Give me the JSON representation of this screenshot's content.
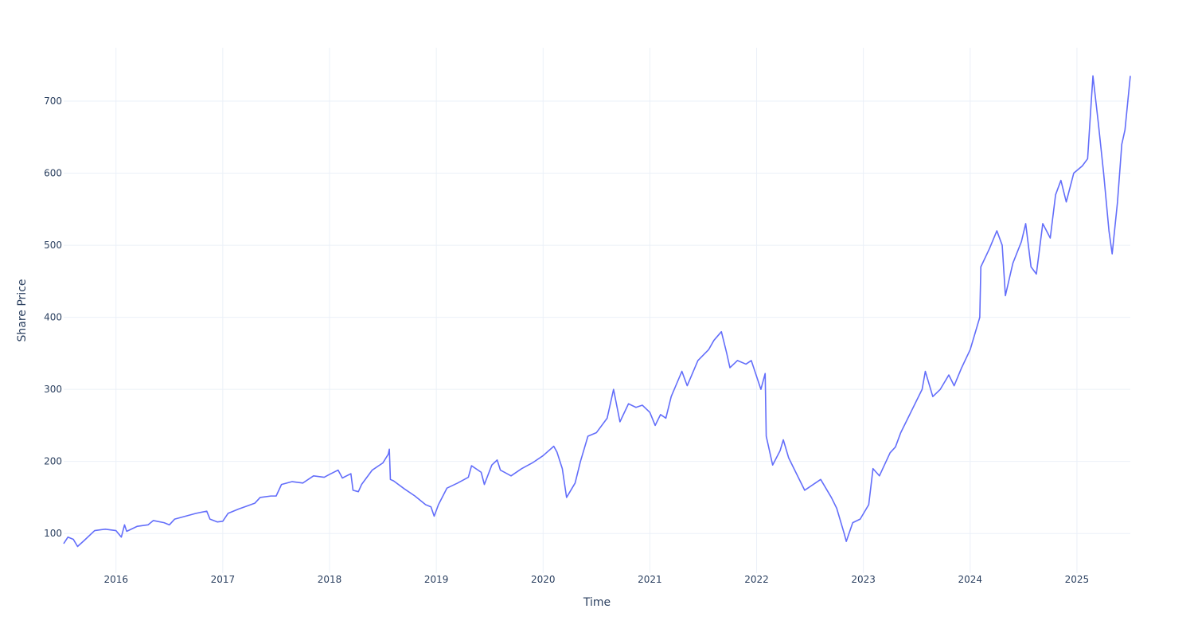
{
  "chart_data": {
    "type": "line",
    "x_label": "Time",
    "y_label": "Share Price",
    "color": "#636efa",
    "grid": true,
    "xlim": [
      2015.51,
      2025.5
    ],
    "ylim": [
      45,
      774
    ],
    "xticks": [
      2016,
      2017,
      2018,
      2019,
      2020,
      2021,
      2022,
      2023,
      2024,
      2025
    ],
    "yticks": [
      100,
      200,
      300,
      400,
      500,
      600,
      700
    ],
    "x": [
      2015.51,
      2015.55,
      2015.6,
      2015.64,
      2015.7,
      2015.8,
      2015.9,
      2016.0,
      2016.05,
      2016.08,
      2016.1,
      2016.2,
      2016.3,
      2016.35,
      2016.45,
      2016.5,
      2016.55,
      2016.65,
      2016.75,
      2016.85,
      2016.88,
      2016.95,
      2017.0,
      2017.05,
      2017.15,
      2017.3,
      2017.35,
      2017.45,
      2017.5,
      2017.55,
      2017.65,
      2017.75,
      2017.85,
      2017.95,
      2018.0,
      2018.08,
      2018.12,
      2018.2,
      2018.22,
      2018.27,
      2018.3,
      2018.4,
      2018.5,
      2018.55,
      2018.56,
      2018.57,
      2018.6,
      2018.7,
      2018.8,
      2018.9,
      2018.95,
      2018.98,
      2019.02,
      2019.1,
      2019.2,
      2019.3,
      2019.33,
      2019.42,
      2019.45,
      2019.52,
      2019.57,
      2019.6,
      2019.7,
      2019.8,
      2019.9,
      2020.0,
      2020.1,
      2020.13,
      2020.18,
      2020.22,
      2020.3,
      2020.35,
      2020.42,
      2020.5,
      2020.6,
      2020.66,
      2020.72,
      2020.8,
      2020.87,
      2020.93,
      2021.0,
      2021.05,
      2021.1,
      2021.15,
      2021.2,
      2021.3,
      2021.35,
      2021.45,
      2021.55,
      2021.6,
      2021.67,
      2021.72,
      2021.75,
      2021.82,
      2021.9,
      2021.95,
      2022.04,
      2022.08,
      2022.09,
      2022.15,
      2022.22,
      2022.25,
      2022.3,
      2022.35,
      2022.45,
      2022.55,
      2022.6,
      2022.7,
      2022.75,
      2022.82,
      2022.84,
      2022.9,
      2022.97,
      2023.05,
      2023.09,
      2023.15,
      2023.25,
      2023.3,
      2023.35,
      2023.45,
      2023.55,
      2023.58,
      2023.65,
      2023.72,
      2023.8,
      2023.85,
      2023.92,
      2024.0,
      2024.09,
      2024.1,
      2024.18,
      2024.25,
      2024.3,
      2024.33,
      2024.4,
      2024.48,
      2024.52,
      2024.57,
      2024.62,
      2024.68,
      2024.75,
      2024.8,
      2024.85,
      2024.9,
      2024.97,
      2025.05,
      2025.1,
      2025.13,
      2025.15,
      2025.2,
      2025.25,
      2025.3,
      2025.33,
      2025.38,
      2025.42,
      2025.45,
      2025.5
    ],
    "values": [
      86,
      95,
      92,
      82,
      90,
      104,
      106,
      104,
      95,
      112,
      103,
      110,
      112,
      118,
      115,
      112,
      120,
      124,
      128,
      131,
      120,
      116,
      117,
      128,
      134,
      142,
      150,
      152,
      152,
      168,
      172,
      170,
      180,
      178,
      182,
      188,
      177,
      183,
      160,
      158,
      168,
      188,
      198,
      210,
      217,
      175,
      173,
      162,
      152,
      140,
      137,
      124,
      140,
      163,
      170,
      178,
      194,
      185,
      168,
      195,
      202,
      188,
      180,
      190,
      198,
      208,
      221,
      213,
      190,
      150,
      170,
      200,
      235,
      240,
      260,
      300,
      255,
      280,
      275,
      278,
      268,
      250,
      265,
      260,
      290,
      325,
      305,
      340,
      355,
      368,
      380,
      350,
      330,
      340,
      335,
      340,
      300,
      322,
      235,
      195,
      215,
      230,
      205,
      190,
      160,
      170,
      175,
      150,
      135,
      100,
      89,
      115,
      120,
      140,
      190,
      180,
      212,
      220,
      240,
      270,
      300,
      325,
      290,
      300,
      320,
      305,
      330,
      355,
      400,
      470,
      495,
      520,
      500,
      430,
      475,
      505,
      530,
      470,
      460,
      530,
      510,
      570,
      590,
      560,
      600,
      610,
      620,
      690,
      735,
      670,
      600,
      520,
      488,
      560,
      640,
      660,
      735
    ]
  }
}
